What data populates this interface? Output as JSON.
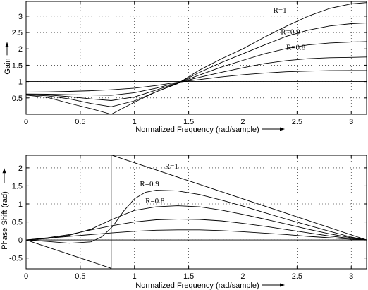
{
  "chart_data": [
    {
      "type": "line",
      "xlabel": "Normalized Frequency (rad/sample)",
      "ylabel": "Gain",
      "xlim": [
        0,
        3.14159
      ],
      "ylim": [
        0,
        3.45
      ],
      "xticks": [
        "0",
        "0.5",
        "1",
        "1.5",
        "2",
        "2.5",
        "3"
      ],
      "yticks": [
        "0.5",
        "1",
        "1.5",
        "2",
        "2.5",
        "3"
      ],
      "xtick_values": [
        0,
        0.5,
        1,
        1.5,
        2,
        2.5,
        3
      ],
      "ytick_values": [
        0.5,
        1,
        1.5,
        2,
        2.5,
        3
      ],
      "grid": true,
      "annotations": [
        {
          "text": "R=1",
          "x": 2.28,
          "y": 3.1
        },
        {
          "text": "R=0.9",
          "x": 2.35,
          "y": 2.45
        },
        {
          "text": "R=0.8",
          "x": 2.4,
          "y": 1.97
        }
      ],
      "series": [
        {
          "x": [
            0,
            0.2,
            0.4,
            0.6,
            0.7854,
            1.0,
            1.2,
            1.4,
            1.6,
            1.8,
            2.0,
            2.2,
            2.4,
            2.6,
            2.8,
            3.0,
            3.1416
          ],
          "values": [
            0.586,
            0.513,
            0.334,
            0.17,
            0.0,
            0.369,
            0.688,
            0.941,
            1.352,
            1.693,
            2.0,
            2.36,
            2.69,
            2.994,
            3.235,
            3.377,
            3.414
          ]
        },
        {
          "x": [
            0,
            0.2,
            0.4,
            0.6,
            0.7854,
            1.0,
            1.2,
            1.4,
            1.6,
            1.8,
            2.0,
            2.2,
            2.4,
            2.6,
            2.8,
            3.0,
            3.1416
          ],
          "values": [
            0.595,
            0.566,
            0.47,
            0.33,
            0.23,
            0.41,
            0.69,
            0.95,
            1.28,
            1.58,
            1.85,
            2.12,
            2.38,
            2.57,
            2.7,
            2.77,
            2.79
          ]
        },
        {
          "x": [
            0,
            0.2,
            0.4,
            0.6,
            0.7854,
            1.0,
            1.2,
            1.4,
            1.6,
            1.8,
            2.0,
            2.2,
            2.4,
            2.6,
            2.8,
            3.0,
            3.1416
          ],
          "values": [
            0.605,
            0.59,
            0.54,
            0.47,
            0.42,
            0.53,
            0.74,
            0.96,
            1.2,
            1.44,
            1.65,
            1.85,
            2.01,
            2.12,
            2.18,
            2.21,
            2.22
          ]
        },
        {
          "x": [
            0,
            0.2,
            0.4,
            0.6,
            0.7854,
            1.0,
            1.2,
            1.4,
            1.6,
            1.8,
            2.0,
            2.2,
            2.4,
            2.6,
            2.8,
            3.0,
            3.1416
          ],
          "values": [
            0.62,
            0.615,
            0.6,
            0.59,
            0.58,
            0.66,
            0.8,
            0.97,
            1.13,
            1.28,
            1.42,
            1.55,
            1.64,
            1.7,
            1.73,
            1.74,
            1.75
          ]
        },
        {
          "x": [
            0,
            0.2,
            0.4,
            0.6,
            0.7854,
            1.0,
            1.2,
            1.4,
            1.6,
            1.8,
            2.0,
            2.2,
            2.4,
            2.6,
            2.8,
            3.0,
            3.1416
          ],
          "values": [
            0.68,
            0.685,
            0.7,
            0.72,
            0.75,
            0.8,
            0.88,
            0.98,
            1.06,
            1.14,
            1.21,
            1.26,
            1.3,
            1.32,
            1.335,
            1.34,
            1.34
          ]
        },
        {
          "x": [
            0,
            3.1416
          ],
          "values": [
            1.0,
            1.0
          ]
        }
      ]
    },
    {
      "type": "line",
      "xlabel": "Normalized Frequency (rad/sample)",
      "ylabel": "Phase Shift (rad)",
      "xlim": [
        0,
        3.14159
      ],
      "ylim": [
        -0.8,
        2.35
      ],
      "xticks": [
        "0",
        "0.5",
        "1",
        "1.5",
        "2",
        "2.5",
        "3"
      ],
      "yticks": [
        "-0.5",
        "0",
        "0.5",
        "1",
        "1.5",
        "2"
      ],
      "xtick_values": [
        0,
        0.5,
        1,
        1.5,
        2,
        2.5,
        3
      ],
      "ytick_values": [
        -0.5,
        0,
        0.5,
        1,
        1.5,
        2
      ],
      "grid": true,
      "annotations": [
        {
          "text": "R=1",
          "x": 1.28,
          "y": 1.98
        },
        {
          "text": "R=0.9",
          "x": 1.05,
          "y": 1.49
        },
        {
          "text": "R=0.8",
          "x": 1.1,
          "y": 1.02
        }
      ],
      "series": [
        {
          "x": [
            0,
            0.7854,
            0.7854,
            0.7854,
            3.1416
          ],
          "values": [
            0,
            -0.7854,
            -0.7854,
            2.3562,
            0
          ]
        },
        {
          "x": [
            0,
            0.2,
            0.4,
            0.6,
            0.7,
            0.8,
            0.9,
            1.0,
            1.1,
            1.2,
            1.4,
            1.6,
            1.8,
            2.0,
            2.2,
            2.4,
            2.6,
            2.8,
            3.0,
            3.1416
          ],
          "values": [
            0,
            -0.04,
            -0.09,
            -0.05,
            0.09,
            0.38,
            0.8,
            1.14,
            1.32,
            1.38,
            1.36,
            1.26,
            1.11,
            0.94,
            0.76,
            0.58,
            0.41,
            0.24,
            0.08,
            0
          ]
        },
        {
          "x": [
            0,
            0.2,
            0.4,
            0.6,
            0.8,
            1.0,
            1.2,
            1.4,
            1.6,
            1.8,
            2.0,
            2.2,
            2.4,
            2.6,
            2.8,
            3.0,
            3.1416
          ],
          "values": [
            0,
            0.04,
            0.13,
            0.3,
            0.58,
            0.82,
            0.92,
            0.95,
            0.92,
            0.83,
            0.71,
            0.58,
            0.44,
            0.3,
            0.17,
            0.06,
            0
          ]
        },
        {
          "x": [
            0,
            0.2,
            0.4,
            0.6,
            0.8,
            1.0,
            1.2,
            1.4,
            1.6,
            1.8,
            2.0,
            2.2,
            2.4,
            2.6,
            2.8,
            3.0,
            3.1416
          ],
          "values": [
            0,
            0.06,
            0.15,
            0.28,
            0.4,
            0.5,
            0.56,
            0.58,
            0.57,
            0.53,
            0.46,
            0.38,
            0.29,
            0.2,
            0.11,
            0.04,
            0
          ]
        },
        {
          "x": [
            0,
            0.2,
            0.4,
            0.6,
            0.8,
            1.0,
            1.2,
            1.4,
            1.6,
            1.8,
            2.0,
            2.2,
            2.4,
            2.6,
            2.8,
            3.0,
            3.1416
          ],
          "values": [
            0,
            0.05,
            0.1,
            0.15,
            0.2,
            0.24,
            0.27,
            0.28,
            0.28,
            0.26,
            0.23,
            0.19,
            0.15,
            0.1,
            0.06,
            0.02,
            0
          ]
        },
        {
          "x": [
            0,
            3.1416
          ],
          "values": [
            0,
            0
          ]
        }
      ]
    }
  ]
}
